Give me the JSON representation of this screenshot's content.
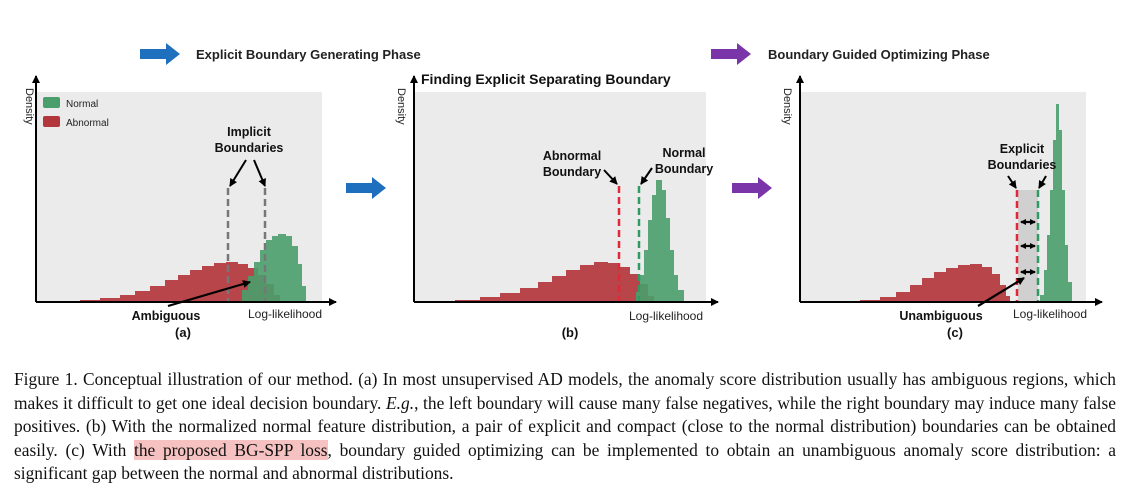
{
  "figure": {
    "phases": {
      "left": "Explicit Boundary Generating Phase",
      "right": "Boundary Guided Optimizing Phase",
      "colors": {
        "left": "#1f6fbf",
        "right": "#7a35a8"
      }
    },
    "legend": {
      "normal": "Normal",
      "abnormal": "Abnormal",
      "colors": {
        "normal": "#4a9e6c",
        "abnormal": "#b2363b"
      }
    },
    "axis_labels": {
      "y": "Density",
      "x": "Log-likelihood"
    },
    "panel_a": {
      "title": "(a)",
      "implicit_line1": "Implicit",
      "implicit_line2": "Boundaries",
      "ambiguous": "Ambiguous"
    },
    "panel_b": {
      "title": "(b)",
      "heading": "Finding Explicit Separating Boundary",
      "abnormal_line1": "Abnormal",
      "abnormal_line2": "Boundary",
      "normal_line1": "Normal",
      "normal_line2": "Boundary"
    },
    "panel_c": {
      "title": "(c)",
      "explicit_line1": "Explicit",
      "explicit_line2": "Boundaries",
      "unambiguous": "Unambiguous"
    }
  },
  "caption": {
    "part1": "Figure 1. Conceptual illustration of our method. (a) In most unsupervised AD models, the anomaly score distribution usually has ambiguous regions, which makes it difficult to get one ideal decision boundary. ",
    "eg": "E.g.",
    "part2": ", the left boundary will cause many false negatives, while the right boundary may induce many false positives. (b) With the normalized normal feature distribution, a pair of explicit and compact (close to the normal distribution) boundaries can be obtained easily. (c) With ",
    "highlight": "the proposed BG-SPP loss",
    "part3": ", boundary guided optimizing can be implemented to obtain an unambiguous anomaly score distribution: a significant gap between the normal and abnormal distributions."
  }
}
